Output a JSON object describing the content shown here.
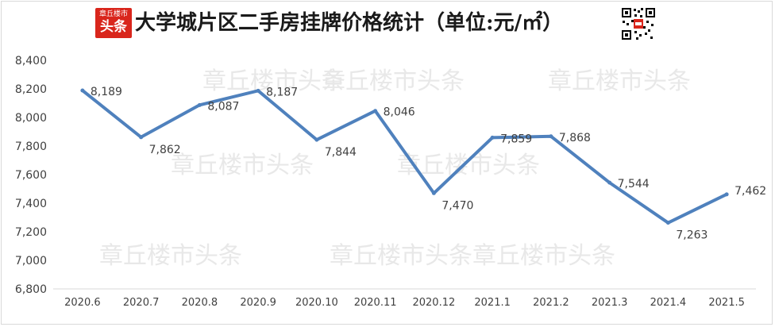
{
  "header": {
    "logo_line1": "章丘楼市",
    "logo_line2": "头条",
    "title": "大学城片区二手房挂牌价格统计（单位:元/㎡）"
  },
  "watermark": "章丘楼市头条",
  "colors": {
    "line": "#4f81bd",
    "logo": "#d9261c",
    "text": "#404040",
    "grid": "#d9d9d9"
  },
  "chart_data": {
    "type": "line",
    "title": "大学城片区二手房挂牌价格统计（单位:元/㎡）",
    "xlabel": "",
    "ylabel": "",
    "categories": [
      "2020.6",
      "2020.7",
      "2020.8",
      "2020.9",
      "2020.10",
      "2020.11",
      "2020.12",
      "2021.1",
      "2021.2",
      "2021.3",
      "2021.4",
      "2021.5"
    ],
    "values": [
      8189,
      7862,
      8087,
      8187,
      7844,
      8046,
      7470,
      7859,
      7868,
      7544,
      7263,
      7462
    ],
    "data_labels": [
      "8,189",
      "7,862",
      "8,087",
      "8,187",
      "7,844",
      "8,046",
      "7,470",
      "7,859",
      "7,868",
      "7,544",
      "7,263",
      "7,462"
    ],
    "ylim": [
      6800,
      8400
    ],
    "yticks": [
      6800,
      7000,
      7200,
      7400,
      7600,
      7800,
      8000,
      8200,
      8400
    ],
    "ytick_labels": [
      "6,800",
      "7,000",
      "7,200",
      "7,400",
      "7,600",
      "7,800",
      "8,000",
      "8,200",
      "8,400"
    ],
    "grid": false,
    "legend": "none"
  }
}
